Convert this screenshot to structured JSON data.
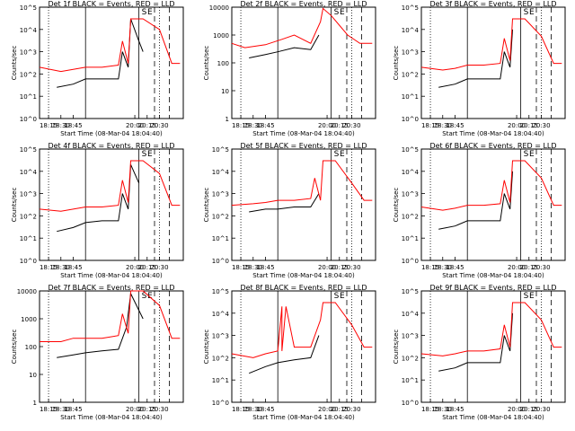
{
  "figure": {
    "xlabel": "Start Time (08-Mar-04 18:04:40)",
    "ylabel": "Counts/sec",
    "series_colors": {
      "events": "#000000",
      "lld": "#ff0000"
    },
    "marker_times": {
      "dotted": [
        "18:15",
        "20:30"
      ],
      "solid": [
        "19:00",
        "20:05"
      ],
      "dashed": [
        "20:24",
        "20:42"
      ]
    },
    "labels": [
      "S",
      "E"
    ]
  },
  "chart_data": [
    {
      "type": "line",
      "title": "Det 1f BLACK = Events, RED = LLD",
      "xticks": [
        "18:15",
        "18:30",
        "18:45",
        "20:00",
        "20:15",
        "20:30"
      ],
      "y_scale": "log",
      "ylim": [
        1,
        100000
      ],
      "yticks": [
        "10^0",
        "10^1",
        "10^2",
        "10^3",
        "10^4",
        "10^5"
      ],
      "series": [
        {
          "name": "Events",
          "color": "#000000",
          "x": [
            "18:25",
            "18:45",
            "19:00",
            "19:20",
            "19:40",
            "19:45",
            "19:52",
            "19:55",
            "20:05",
            "20:10"
          ],
          "y": [
            25,
            35,
            60,
            60,
            60,
            1000,
            200,
            30000,
            3000,
            1000
          ]
        },
        {
          "name": "LLD",
          "color": "#ff0000",
          "x": [
            "18:04",
            "18:30",
            "18:45",
            "19:00",
            "19:20",
            "19:40",
            "19:45",
            "19:52",
            "19:55",
            "20:10",
            "20:30",
            "20:45",
            "20:55"
          ],
          "y": [
            200,
            130,
            160,
            200,
            200,
            250,
            3000,
            300,
            30000,
            30000,
            10000,
            300,
            300
          ]
        }
      ]
    },
    {
      "type": "line",
      "title": "Det 2f BLACK = Events, RED = LLD",
      "xticks": [
        "18:15",
        "18:30",
        "18:45",
        "20:00",
        "20:15",
        "20:30"
      ],
      "y_scale": "log",
      "ylim": [
        1,
        10000
      ],
      "yticks": [
        "1",
        "10",
        "100",
        "1000",
        "10000"
      ],
      "series": [
        {
          "name": "Events",
          "color": "#000000",
          "x": [
            "18:25",
            "18:45",
            "19:00",
            "19:20",
            "19:40",
            "19:50"
          ],
          "y": [
            150,
            200,
            250,
            350,
            300,
            1000
          ]
        },
        {
          "name": "LLD",
          "color": "#ff0000",
          "x": [
            "18:04",
            "18:20",
            "18:45",
            "19:05",
            "19:20",
            "19:40",
            "19:52",
            "19:55",
            "20:05",
            "20:25",
            "20:40",
            "20:55"
          ],
          "y": [
            500,
            350,
            450,
            700,
            1000,
            500,
            3000,
            9000,
            5000,
            1000,
            500,
            500
          ]
        }
      ]
    },
    {
      "type": "line",
      "title": "Det 3f BLACK = Events, RED = LLD",
      "xticks": [
        "18:15",
        "18:30",
        "18:45",
        "20:00",
        "20:15",
        "20:30"
      ],
      "y_scale": "log",
      "ylim": [
        1,
        100000
      ],
      "yticks": [
        "10^0",
        "10^1",
        "10^2",
        "10^3",
        "10^4",
        "10^5"
      ],
      "series": [
        {
          "name": "Events",
          "color": "#000000",
          "x": [
            "18:25",
            "18:45",
            "19:00",
            "19:20",
            "19:40",
            "19:45",
            "19:52",
            "19:55"
          ],
          "y": [
            25,
            35,
            60,
            60,
            60,
            1000,
            200,
            10000
          ]
        },
        {
          "name": "LLD",
          "color": "#ff0000",
          "x": [
            "18:04",
            "18:30",
            "18:45",
            "19:00",
            "19:20",
            "19:40",
            "19:45",
            "19:52",
            "19:55",
            "20:10",
            "20:30",
            "20:45",
            "20:55"
          ],
          "y": [
            200,
            150,
            180,
            250,
            250,
            300,
            4000,
            400,
            30000,
            30000,
            5000,
            300,
            300
          ]
        }
      ]
    },
    {
      "type": "line",
      "title": "Det 4f BLACK = Events, RED = LLD",
      "xticks": [
        "18:15",
        "18:30",
        "18:45",
        "20:00",
        "20:15",
        "20:30"
      ],
      "y_scale": "log",
      "ylim": [
        1,
        100000
      ],
      "yticks": [
        "10^0",
        "10^1",
        "10^2",
        "10^3",
        "10^4",
        "10^5"
      ],
      "series": [
        {
          "name": "Events",
          "color": "#000000",
          "x": [
            "18:25",
            "18:45",
            "19:00",
            "19:20",
            "19:40",
            "19:45",
            "19:52",
            "19:55",
            "20:05"
          ],
          "y": [
            20,
            30,
            50,
            60,
            60,
            1000,
            200,
            20000,
            3000
          ]
        },
        {
          "name": "LLD",
          "color": "#ff0000",
          "x": [
            "18:04",
            "18:30",
            "18:45",
            "19:00",
            "19:20",
            "19:40",
            "19:45",
            "19:52",
            "19:55",
            "20:10",
            "20:30",
            "20:45",
            "20:55"
          ],
          "y": [
            200,
            160,
            200,
            250,
            250,
            300,
            4000,
            400,
            30000,
            30000,
            8000,
            300,
            300
          ]
        }
      ]
    },
    {
      "type": "line",
      "title": "Det 5f BLACK = Events, RED = LLD",
      "xticks": [
        "18:15",
        "18:30",
        "18:45",
        "20:00",
        "20:15",
        "20:30"
      ],
      "y_scale": "log",
      "ylim": [
        1,
        100000
      ],
      "yticks": [
        "10^0",
        "10^1",
        "10^2",
        "10^3",
        "10^4",
        "10^5"
      ],
      "series": [
        {
          "name": "Events",
          "color": "#000000",
          "x": [
            "18:25",
            "18:45",
            "19:00",
            "19:20",
            "19:40",
            "19:50"
          ],
          "y": [
            150,
            200,
            200,
            250,
            250,
            1000
          ]
        },
        {
          "name": "LLD",
          "color": "#ff0000",
          "x": [
            "18:04",
            "18:30",
            "18:45",
            "19:00",
            "19:20",
            "19:40",
            "19:45",
            "19:52",
            "19:55",
            "20:10",
            "20:30",
            "20:45",
            "20:55"
          ],
          "y": [
            300,
            350,
            400,
            500,
            500,
            600,
            5000,
            500,
            30000,
            30000,
            3000,
            500,
            500
          ]
        }
      ]
    },
    {
      "type": "line",
      "title": "Det 6f BLACK = Events, RED = LLD",
      "xticks": [
        "18:15",
        "18:30",
        "18:45",
        "20:00",
        "20:15",
        "20:30"
      ],
      "y_scale": "log",
      "ylim": [
        1,
        100000
      ],
      "yticks": [
        "10^0",
        "10^1",
        "10^2",
        "10^3",
        "10^4",
        "10^5"
      ],
      "series": [
        {
          "name": "Events",
          "color": "#000000",
          "x": [
            "18:25",
            "18:45",
            "19:00",
            "19:20",
            "19:40",
            "19:45",
            "19:52",
            "19:55"
          ],
          "y": [
            25,
            35,
            60,
            60,
            60,
            1000,
            200,
            10000
          ]
        },
        {
          "name": "LLD",
          "color": "#ff0000",
          "x": [
            "18:04",
            "18:30",
            "18:45",
            "19:00",
            "19:20",
            "19:40",
            "19:45",
            "19:52",
            "19:55",
            "20:10",
            "20:30",
            "20:45",
            "20:55"
          ],
          "y": [
            250,
            180,
            220,
            300,
            300,
            350,
            4000,
            400,
            30000,
            30000,
            5000,
            300,
            300
          ]
        }
      ]
    },
    {
      "type": "line",
      "title": "Det 7f BLACK = Events, RED = LLD",
      "xticks": [
        "18:15",
        "18:30",
        "18:45",
        "20:00",
        "20:15",
        "20:30"
      ],
      "y_scale": "log",
      "ylim": [
        1,
        10000
      ],
      "yticks": [
        "1",
        "10",
        "100",
        "1000",
        "10000"
      ],
      "series": [
        {
          "name": "Events",
          "color": "#000000",
          "x": [
            "18:25",
            "18:45",
            "19:00",
            "19:20",
            "19:40",
            "19:50",
            "19:55",
            "20:10"
          ],
          "y": [
            40,
            50,
            60,
            70,
            80,
            500,
            8000,
            1000
          ]
        },
        {
          "name": "LLD",
          "color": "#ff0000",
          "x": [
            "18:04",
            "18:30",
            "18:45",
            "19:00",
            "19:20",
            "19:40",
            "19:45",
            "19:52",
            "19:55",
            "20:10",
            "20:30",
            "20:45",
            "20:55"
          ],
          "y": [
            150,
            150,
            200,
            200,
            200,
            250,
            1500,
            300,
            10000,
            10000,
            3000,
            200,
            200
          ]
        }
      ]
    },
    {
      "type": "line",
      "title": "Det 8f BLACK = Events, RED = LLD",
      "xticks": [
        "18:15",
        "18:30",
        "18:45",
        "20:00",
        "20:15",
        "20:30"
      ],
      "y_scale": "log",
      "ylim": [
        1,
        100000
      ],
      "yticks": [
        "10^0",
        "10^1",
        "10^2",
        "10^3",
        "10^4",
        "10^5"
      ],
      "series": [
        {
          "name": "Events",
          "color": "#000000",
          "x": [
            "18:25",
            "18:45",
            "19:00",
            "19:20",
            "19:40",
            "19:50"
          ],
          "y": [
            20,
            40,
            60,
            80,
            100,
            1000
          ]
        },
        {
          "name": "LLD",
          "color": "#ff0000",
          "x": [
            "18:04",
            "18:30",
            "18:45",
            "19:00",
            "19:05",
            "19:05",
            "19:10",
            "19:20",
            "19:40",
            "19:52",
            "19:55",
            "20:10",
            "20:30",
            "20:45",
            "20:55"
          ],
          "y": [
            150,
            100,
            150,
            200,
            20000,
            200,
            20000,
            300,
            300,
            5000,
            30000,
            30000,
            3000,
            300,
            300
          ]
        }
      ]
    },
    {
      "type": "line",
      "title": "Det 9f BLACK = Events, RED = LLD",
      "xticks": [
        "18:15",
        "18:30",
        "18:45",
        "20:00",
        "20:15",
        "20:30"
      ],
      "y_scale": "log",
      "ylim": [
        1,
        100000
      ],
      "yticks": [
        "10^0",
        "10^1",
        "10^2",
        "10^3",
        "10^4",
        "10^5"
      ],
      "series": [
        {
          "name": "Events",
          "color": "#000000",
          "x": [
            "18:25",
            "18:45",
            "19:00",
            "19:20",
            "19:40",
            "19:45",
            "19:52",
            "19:55"
          ],
          "y": [
            25,
            35,
            60,
            60,
            60,
            1000,
            200,
            10000
          ]
        },
        {
          "name": "LLD",
          "color": "#ff0000",
          "x": [
            "18:04",
            "18:30",
            "18:45",
            "19:00",
            "19:20",
            "19:40",
            "19:45",
            "19:52",
            "19:55",
            "20:10",
            "20:30",
            "20:45",
            "20:55"
          ],
          "y": [
            150,
            120,
            150,
            200,
            200,
            250,
            3000,
            300,
            30000,
            30000,
            5000,
            300,
            300
          ]
        }
      ]
    }
  ]
}
